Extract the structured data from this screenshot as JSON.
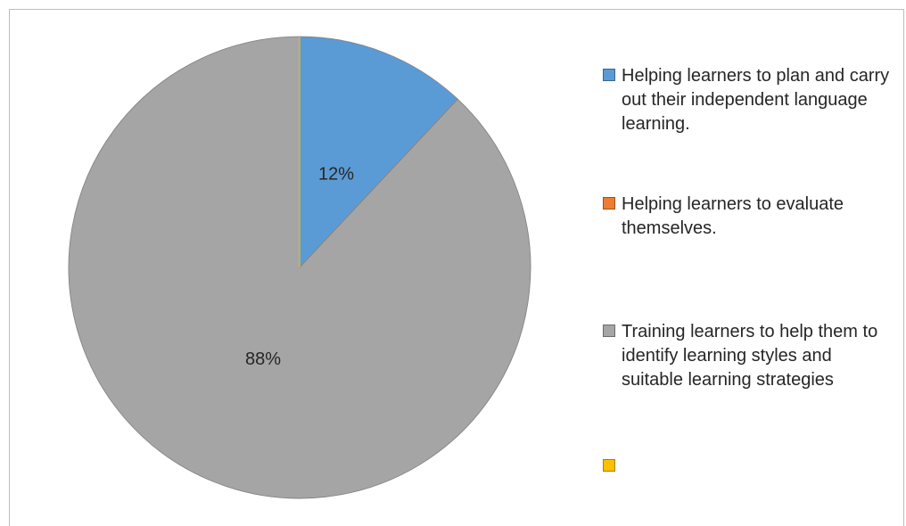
{
  "chart_data": {
    "type": "pie",
    "title": "",
    "legend_position": "right",
    "slices": [
      {
        "label": "Helping learners to plan and carry out their independent language learning.",
        "value": 12,
        "value_label": "12%",
        "color": "#5B9BD5"
      },
      {
        "label": "Helping learners to evaluate themselves.",
        "value": 0,
        "value_label": "",
        "color": "#ED7D31"
      },
      {
        "label": "Training learners to help them to identify learning styles and suitable learning strategies",
        "value": 88,
        "value_label": "88%",
        "color": "#A5A5A5"
      },
      {
        "label": "",
        "value": 0,
        "value_label": "",
        "color": "#FFC000"
      }
    ]
  }
}
